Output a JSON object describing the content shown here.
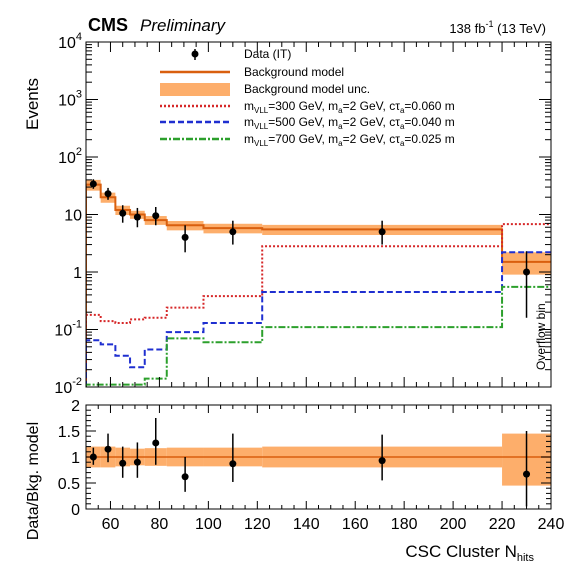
{
  "header": {
    "experiment": "CMS",
    "status": "Preliminary",
    "lumi_value": "138 fb",
    "lumi_exp": "-1",
    "energy": " (13 TeV)"
  },
  "colors": {
    "background_model": "#d95f0e",
    "background_unc": "#fdae6b",
    "signal_300": "#d62728",
    "signal_500": "#1f2fd0",
    "signal_700": "#2ca02c",
    "data": "#000000"
  },
  "chart_data": [
    {
      "type": "line",
      "panel": "main",
      "ylabel": "Events",
      "yscale": "log",
      "ylim": [
        0.01,
        10000
      ],
      "xlim": [
        50,
        240
      ],
      "y_tick_labels": [
        {
          "base": "10",
          "exp": "-2",
          "value": 0.01
        },
        {
          "base": "10",
          "exp": "-1",
          "value": 0.1
        },
        {
          "base": "1",
          "exp": "",
          "value": 1
        },
        {
          "base": "10",
          "exp": "",
          "value": 10
        },
        {
          "base": "10",
          "exp": "2",
          "value": 100
        },
        {
          "base": "10",
          "exp": "3",
          "value": 1000
        },
        {
          "base": "10",
          "exp": "4",
          "value": 10000
        }
      ],
      "legend": {
        "placement": "top-right",
        "entries": [
          {
            "key": "data",
            "label": "Data (IT)"
          },
          {
            "key": "bkg",
            "label": "Background model"
          },
          {
            "key": "unc",
            "label": "Background model unc."
          },
          {
            "key": "s300",
            "m_sub": "VLL",
            "m_val": "=300 GeV, m",
            "a_sub": "a",
            "a_val": "=2 GeV, cτ",
            "t_sub": "a",
            "t_val": "=0.060 m"
          },
          {
            "key": "s500",
            "m_sub": "VLL",
            "m_val": "=500 GeV, m",
            "a_sub": "a",
            "a_val": "=2 GeV, cτ",
            "t_sub": "a",
            "t_val": "=0.040 m"
          },
          {
            "key": "s700",
            "m_sub": "VLL",
            "m_val": "=700 GeV, m",
            "a_sub": "a",
            "a_val": "=2 GeV, cτ",
            "t_sub": "a",
            "t_val": "=0.025 m"
          }
        ]
      },
      "annotation": "Overflow bin",
      "bin_edges": [
        50,
        56,
        62,
        68,
        74,
        83,
        98,
        122,
        220,
        240
      ],
      "background": {
        "values": [
          33,
          20,
          12,
          10,
          8,
          6.5,
          5.8,
          5.5,
          1.5
        ],
        "unc_low": [
          26,
          16,
          9.8,
          8.4,
          6.6,
          5.3,
          4.7,
          4.4,
          0.9
        ],
        "unc_high": [
          40,
          24,
          14.2,
          11.6,
          9.4,
          7.7,
          6.9,
          6.6,
          2.2
        ]
      },
      "signals": [
        {
          "key": "s300",
          "values": [
            0.18,
            0.14,
            0.13,
            0.15,
            0.16,
            0.24,
            0.38,
            2.8,
            6.8
          ]
        },
        {
          "key": "s500",
          "values": [
            0.065,
            0.055,
            0.035,
            0.022,
            0.045,
            0.09,
            0.13,
            0.45,
            2.2
          ]
        },
        {
          "key": "s700",
          "values": [
            0.011,
            0.011,
            0.011,
            0.011,
            0.014,
            0.07,
            0.06,
            0.11,
            0.55
          ]
        }
      ],
      "data_points": [
        {
          "x": 53,
          "y": 34,
          "ylo": 28,
          "yhi": 41
        },
        {
          "x": 59,
          "y": 23,
          "ylo": 18,
          "yhi": 29
        },
        {
          "x": 65,
          "y": 10.5,
          "ylo": 7.2,
          "yhi": 14.5
        },
        {
          "x": 71,
          "y": 9,
          "ylo": 6,
          "yhi": 13
        },
        {
          "x": 78.5,
          "y": 9.5,
          "ylo": 6.5,
          "yhi": 13.5
        },
        {
          "x": 90.5,
          "y": 4,
          "ylo": 2.2,
          "yhi": 6.5
        },
        {
          "x": 110,
          "y": 5,
          "ylo": 3,
          "yhi": 7.8
        },
        {
          "x": 171,
          "y": 5,
          "ylo": 3,
          "yhi": 7.8
        },
        {
          "x": 230,
          "y": 1,
          "ylo": 0.16,
          "yhi": 2.3
        }
      ]
    },
    {
      "type": "line",
      "panel": "ratio",
      "ylabel": "Data/Bkg. model",
      "xlabel": "CSC Cluster N",
      "xlabel_sub": "hits",
      "ylim": [
        0,
        2
      ],
      "xlim": [
        50,
        240
      ],
      "y_ticks": [
        0,
        0.5,
        1,
        1.5,
        2
      ],
      "y_tick_labels": [
        "0",
        "0.5",
        "1",
        "1.5",
        "2"
      ],
      "x_ticks": [
        60,
        80,
        100,
        120,
        140,
        160,
        180,
        200,
        220,
        240
      ],
      "x_tick_labels": [
        "60",
        "80",
        "100",
        "120",
        "140",
        "160",
        "180",
        "200",
        "220",
        "240"
      ],
      "bin_edges": [
        50,
        56,
        62,
        68,
        74,
        83,
        98,
        122,
        220,
        240
      ],
      "unc_low": [
        0.8,
        0.8,
        0.82,
        0.84,
        0.83,
        0.82,
        0.82,
        0.8,
        0.45
      ],
      "unc_high": [
        1.2,
        1.2,
        1.18,
        1.16,
        1.17,
        1.18,
        1.18,
        1.2,
        1.45
      ],
      "data_points": [
        {
          "x": 53,
          "y": 1.0,
          "ylo": 0.85,
          "yhi": 1.18
        },
        {
          "x": 59,
          "y": 1.15,
          "ylo": 0.9,
          "yhi": 1.45
        },
        {
          "x": 65,
          "y": 0.88,
          "ylo": 0.6,
          "yhi": 1.2
        },
        {
          "x": 71,
          "y": 0.9,
          "ylo": 0.6,
          "yhi": 1.28
        },
        {
          "x": 78.5,
          "y": 1.27,
          "ylo": 0.85,
          "yhi": 1.75
        },
        {
          "x": 90.5,
          "y": 0.62,
          "ylo": 0.33,
          "yhi": 1.0
        },
        {
          "x": 110,
          "y": 0.87,
          "ylo": 0.52,
          "yhi": 1.45
        },
        {
          "x": 171,
          "y": 0.93,
          "ylo": 0.55,
          "yhi": 1.43
        },
        {
          "x": 230,
          "y": 0.67,
          "ylo": 0.05,
          "yhi": 1.5
        }
      ]
    }
  ]
}
